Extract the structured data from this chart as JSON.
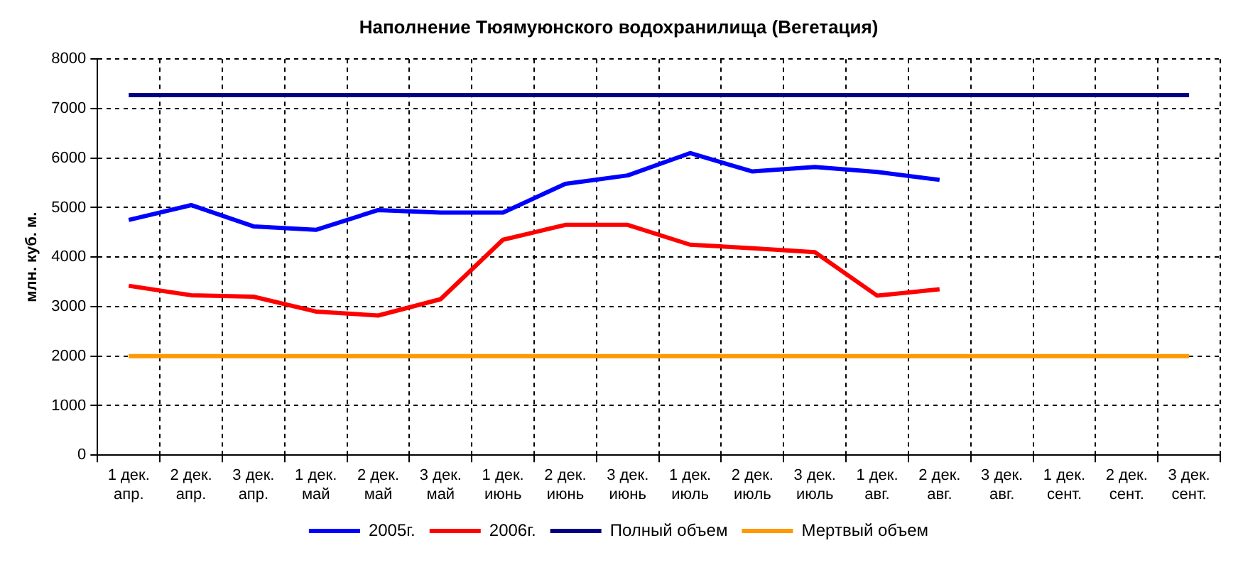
{
  "chart_data": {
    "type": "line",
    "title": "Наполнение Тюямуюнского водохранилища (Вегетация)",
    "ylabel": "млн. куб. м.",
    "categories": [
      "1 дек.\nапр.",
      "2 дек.\nапр.",
      "3 дек.\nапр.",
      "1 дек.\nмай",
      "2 дек.\nмай",
      "3 дек.\nмай",
      "1 дек.\nиюнь",
      "2 дек.\nиюнь",
      "3 дек.\nиюнь",
      "1 дек.\nиюль",
      "2 дек.\nиюль",
      "3 дек.\nиюль",
      "1 дек.\nавг.",
      "2 дек.\nавг.",
      "3 дек.\nавг.",
      "1 дек.\nсент.",
      "2 дек.\nсент.",
      "3 дек.\nсент."
    ],
    "series": [
      {
        "name": "2005г.",
        "color": "#0000ff",
        "values": [
          4750,
          5050,
          4620,
          4550,
          4950,
          4900,
          4900,
          5480,
          5650,
          6100,
          5730,
          5820,
          5720,
          5560,
          null,
          null,
          null,
          null
        ]
      },
      {
        "name": "2006г.",
        "color": "#ff0000",
        "values": [
          3420,
          3230,
          3200,
          2900,
          2820,
          3150,
          4350,
          4650,
          4650,
          4250,
          4180,
          4100,
          3220,
          3350,
          null,
          null,
          null,
          null
        ]
      },
      {
        "name": "Полный объем",
        "color": "#000080",
        "values": [
          7270,
          7270,
          7270,
          7270,
          7270,
          7270,
          7270,
          7270,
          7270,
          7270,
          7270,
          7270,
          7270,
          7270,
          7270,
          7270,
          7270,
          7270
        ]
      },
      {
        "name": "Мертвый объем",
        "color": "#ff9900",
        "values": [
          2000,
          2000,
          2000,
          2000,
          2000,
          2000,
          2000,
          2000,
          2000,
          2000,
          2000,
          2000,
          2000,
          2000,
          2000,
          2000,
          2000,
          2000
        ]
      }
    ],
    "ylim": [
      0,
      8000
    ],
    "yticks": [
      0,
      1000,
      2000,
      3000,
      4000,
      5000,
      6000,
      7000,
      8000
    ],
    "grid": true,
    "legend": "bottom",
    "marker": "none",
    "line_style": "solid"
  }
}
